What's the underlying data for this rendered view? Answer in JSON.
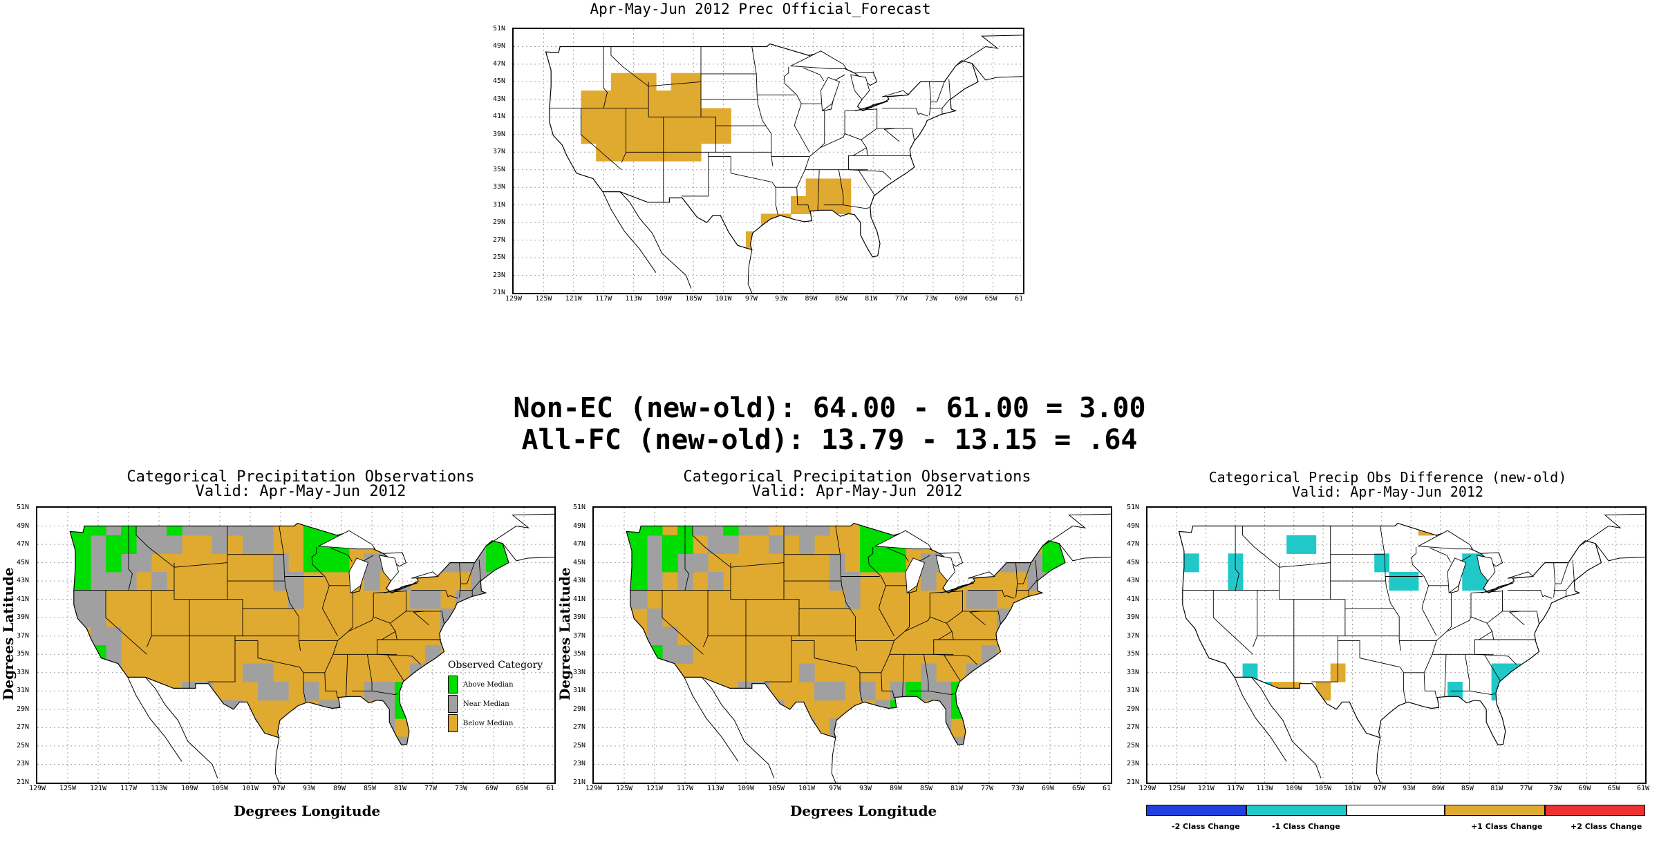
{
  "colors": {
    "above": "#00dd00",
    "near": "#a0a0a0",
    "below": "#e0aa30",
    "minus2": "#2040e0",
    "minus1": "#20c8c8",
    "plus1": "#e0aa30",
    "plus2": "#ee3030",
    "cont": "#ffffff"
  },
  "lat_ticks": [
    "51N",
    "49N",
    "47N",
    "45N",
    "43N",
    "41N",
    "39N",
    "37N",
    "35N",
    "33N",
    "31N",
    "29N",
    "27N",
    "25N",
    "23N",
    "21N"
  ],
  "lon_ticks": [
    "129W",
    "125W",
    "121W",
    "117W",
    "113W",
    "109W",
    "105W",
    "101W",
    "97W",
    "93W",
    "89W",
    "85W",
    "81W",
    "77W",
    "73W",
    "69W",
    "65W",
    "61"
  ],
  "lon_ticks_last": "61W",
  "forecast_map": {
    "title": "Apr-May-Jun 2012 Prec Official_Forecast"
  },
  "stats": {
    "line1": "Non-EC (new-old): 64.00 - 61.00 = 3.00",
    "line2": "All-FC (new-old): 13.79 - 13.15 = .64"
  },
  "obs_left": {
    "title1": "Categorical Precipitation Observations",
    "title2": "Valid: Apr-May-Jun 2012",
    "xlabel": "Degrees Longitude",
    "ylabel": "Degrees Latitude"
  },
  "obs_middle": {
    "title1": "Categorical Precipitation Observations",
    "title2": "Valid: Apr-May-Jun 2012",
    "xlabel": "Degrees Longitude",
    "ylabel": "Degrees Latitude"
  },
  "legend": {
    "title": "Observed Category",
    "items": [
      "Above Median",
      "Near Median",
      "Below Median"
    ]
  },
  "diff_map": {
    "title1": "Categorical Precip Obs Difference (new-old)",
    "title2": "Valid: Apr-May-Jun 2012",
    "colorbar": [
      "-2 Class Change",
      "-1 Class Change",
      "+1 Class Change",
      "+2 Class Change"
    ]
  }
}
